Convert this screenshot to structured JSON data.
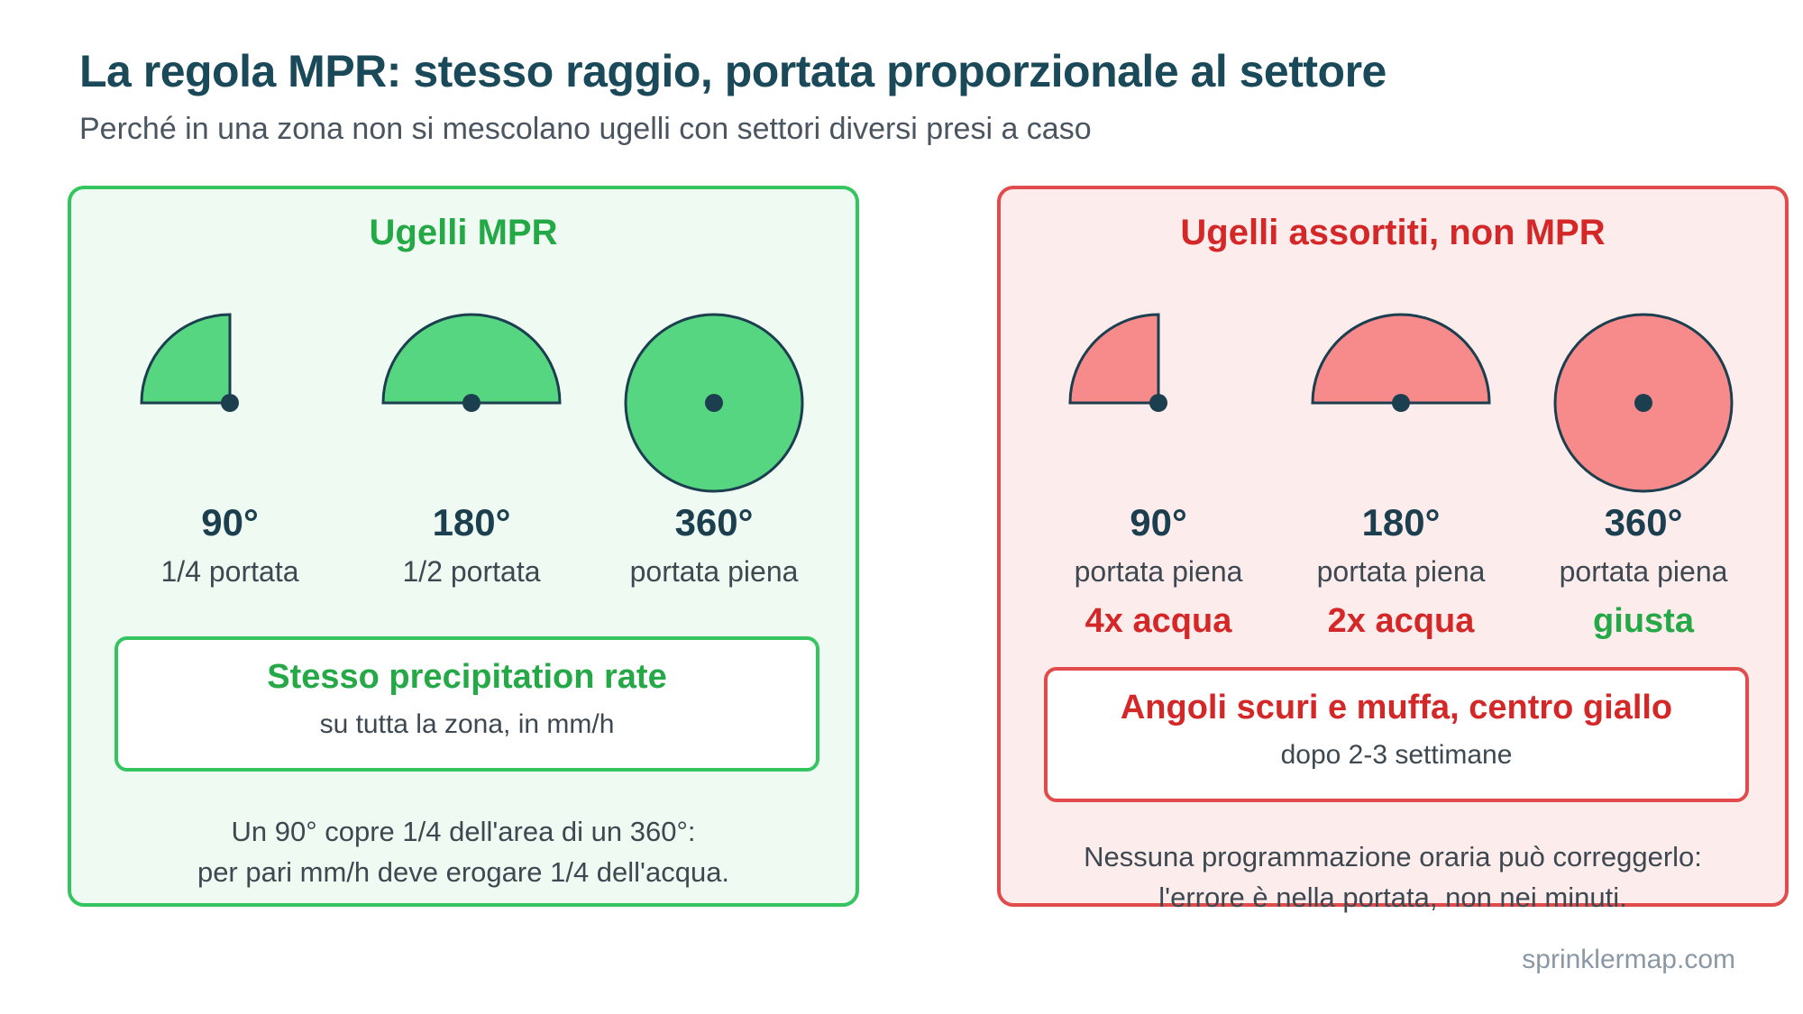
{
  "header": {
    "title": "La regola MPR: stesso raggio, portata proporzionale al settore",
    "subtitle": "Perché in una zona non si mescolano ugelli con settori diversi presi a caso"
  },
  "colors": {
    "good_fill": "#57d681",
    "good_accent": "#25a846",
    "bad_fill": "#f78a8a",
    "bad_accent": "#d42727",
    "outline": "#1c3f4f"
  },
  "panels": {
    "good": {
      "title": "Ugelli MPR",
      "items": [
        {
          "degrees": "90°",
          "desc": "1/4 portata",
          "sector": 90
        },
        {
          "degrees": "180°",
          "desc": "1/2 portata",
          "sector": 180
        },
        {
          "degrees": "360°",
          "desc": "portata piena",
          "sector": 360
        }
      ],
      "callout": {
        "title": "Stesso precipitation rate",
        "body": "su tutta la zona, in mm/h"
      },
      "footnote": [
        "Un 90° copre 1/4 dell'area di un 360°:",
        "per pari mm/h deve erogare 1/4 dell'acqua."
      ]
    },
    "bad": {
      "title": "Ugelli assortiti, non MPR",
      "items": [
        {
          "degrees": "90°",
          "desc": "portata piena",
          "note": "4x acqua",
          "sector": 90
        },
        {
          "degrees": "180°",
          "desc": "portata piena",
          "note": "2x acqua",
          "sector": 180
        },
        {
          "degrees": "360°",
          "desc": "portata piena",
          "note": "giusta",
          "sector": 360
        }
      ],
      "callout": {
        "title": "Angoli scuri e muffa, centro giallo",
        "body": "dopo 2-3 settimane"
      },
      "footnote": [
        "Nessuna programmazione oraria può correggerlo:",
        "l'errore è nella portata, non nei minuti."
      ]
    }
  },
  "footer": {
    "brand": "sprinklermap.com"
  }
}
